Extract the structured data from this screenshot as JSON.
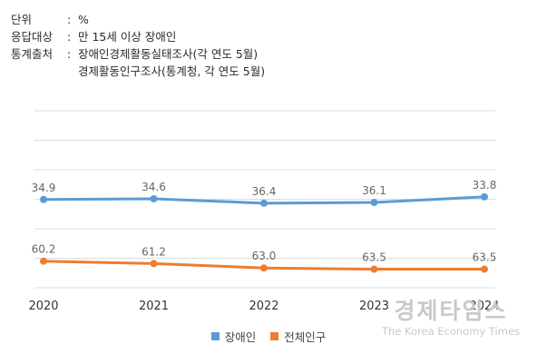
{
  "meta": {
    "unit_key": "단위",
    "unit_value": "%",
    "target_key": "응답대상",
    "target_value": "만 15세 이상 장애인",
    "source_key": "통계출처",
    "source_values": [
      "장애인경제활동실태조사(각 연도 5월)",
      "경제활동인구조사(통계청, 각 연도 5월)"
    ]
  },
  "chart_data": {
    "type": "line",
    "categories": [
      "2020",
      "2021",
      "2022",
      "2023",
      "2024"
    ],
    "series": [
      {
        "name": "장애인",
        "values": [
          34.9,
          34.6,
          36.4,
          36.1,
          33.8
        ],
        "labels": [
          "34.9",
          "34.6",
          "36.4",
          "36.1",
          "33.8"
        ],
        "color": "#5b9bd5"
      },
      {
        "name": "전체인구",
        "values": [
          60.2,
          61.2,
          63.0,
          63.5,
          63.5
        ],
        "labels": [
          "60.2",
          "61.2",
          "63.0",
          "63.5",
          "63.5"
        ],
        "color": "#ed7d31"
      }
    ],
    "grid": true,
    "legend": "bottom",
    "gridline_color": "#dddddd"
  },
  "watermark": {
    "main": "경제타임스",
    "sub": "The Korea Economy Times"
  }
}
